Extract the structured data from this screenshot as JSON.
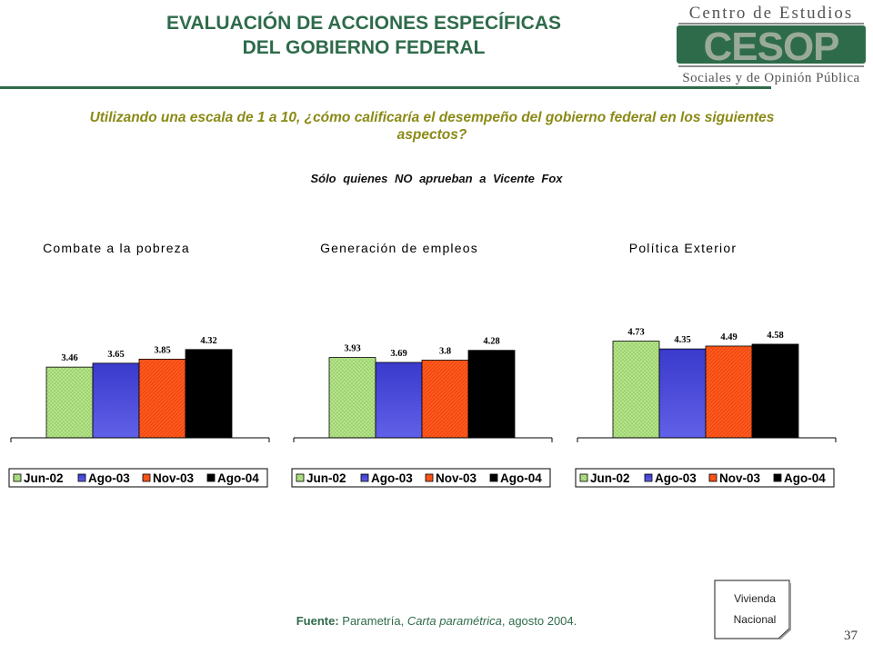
{
  "header": {
    "title_line1": "EVALUACIÓN DE ACCIONES ESPECÍFICAS",
    "title_line2": "DEL GOBIERNO FEDERAL"
  },
  "logo": {
    "top_text": "Centro de Estudios",
    "letters": "CESOP",
    "bottom_text": "Sociales y de Opinión Pública"
  },
  "question": "Utilizando una escala de 1 a 10, ¿cómo calificaría el desempeño del gobierno federal en los siguientes aspectos?",
  "subset_label": "Sólo  quienes   NO aprueban  a Vicente  Fox",
  "legend_colors": [
    "#b9e68f",
    "#4848d8",
    "#ff5a1e",
    "#000000"
  ],
  "chart_data": [
    {
      "type": "bar",
      "title": "Combate a la pobreza",
      "categories": [
        "Jun-02",
        "Ago-03",
        "Nov-03",
        "Ago-04"
      ],
      "values": [
        3.46,
        3.65,
        3.85,
        4.32
      ],
      "value_labels": [
        "3.46",
        "3.65",
        "3.85",
        "4.32"
      ],
      "legend": [
        "Jun-02",
        "Ago-03",
        "Nov-03",
        "Ago-04"
      ],
      "legend_placement": "bottom",
      "grid": false
    },
    {
      "type": "bar",
      "title": "Generación de empleos",
      "categories": [
        "Jun-02",
        "Ago-03",
        "Nov-03",
        "Ago-04"
      ],
      "values": [
        3.93,
        3.69,
        3.8,
        4.28
      ],
      "value_labels": [
        "3.93",
        "3.69",
        "3.8",
        "4.28"
      ],
      "legend": [
        "Jun-02",
        "Ago-03",
        "Nov-03",
        "Ago-04"
      ],
      "legend_placement": "bottom",
      "grid": false
    },
    {
      "type": "bar",
      "title": "Política Exterior",
      "categories": [
        "Jun-02",
        "Ago-03",
        "Nov-03",
        "Ago-04"
      ],
      "values": [
        4.73,
        4.35,
        4.49,
        4.58
      ],
      "value_labels": [
        "4.73",
        "4.35",
        "4.49",
        "4.58"
      ],
      "legend": [
        "Jun-02",
        "Ago-03",
        "Nov-03",
        "Ago-04"
      ],
      "legend_placement": "bottom",
      "grid": false
    }
  ],
  "source": {
    "label": "Fuente:",
    "publisher": " Parametría, ",
    "publication": "Carta paramétrica",
    "date": ", agosto 2004."
  },
  "note": {
    "line1": "Vivienda",
    "line2": "Nacional"
  },
  "page_number": "37"
}
